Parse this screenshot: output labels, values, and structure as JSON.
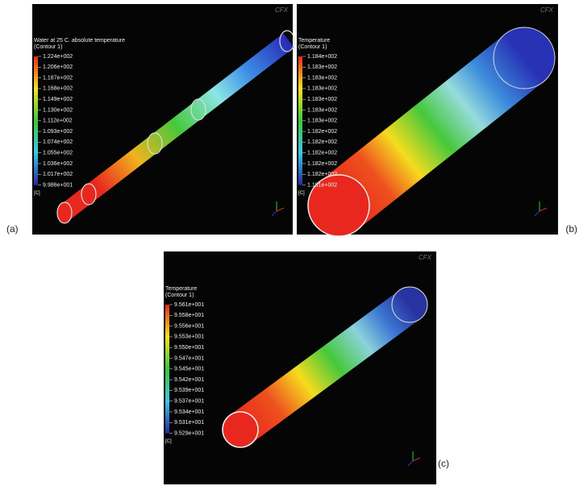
{
  "panels": [
    {
      "label": "(a)",
      "watermark": "CFX",
      "legend_title": [
        "Water at 25 C. absolute temperature",
        "(Contour 1)"
      ],
      "unit": "[C]",
      "ticks": [
        "1.224e+002",
        "1.206e+002",
        "1.187e+002",
        "1.168e+002",
        "1.149e+002",
        "1.130e+002",
        "1.112e+002",
        "1.093e+002",
        "1.074e+002",
        "1.055e+002",
        "1.036e+002",
        "1.017e+002",
        "9.986e+001"
      ]
    },
    {
      "label": "(b)",
      "watermark": "CFX",
      "legend_title": [
        "Temperature",
        "(Contour 1)"
      ],
      "unit": "[C]",
      "ticks": [
        "1.184e+002",
        "1.183e+002",
        "1.183e+002",
        "1.183e+002",
        "1.183e+002",
        "1.183e+002",
        "1.183e+002",
        "1.182e+002",
        "1.182e+002",
        "1.182e+002",
        "1.182e+002",
        "1.182e+002",
        "1.181e+002"
      ]
    },
    {
      "label": "(c)",
      "watermark": "CFX",
      "legend_title": [
        "Temperature",
        "(Contour 1)"
      ],
      "unit": "[C]",
      "ticks": [
        "9.561e+001",
        "9.558e+001",
        "9.556e+001",
        "9.553e+001",
        "9.550e+001",
        "9.547e+001",
        "9.545e+001",
        "9.542e+001",
        "9.539e+001",
        "9.537e+001",
        "9.534e+001",
        "9.531e+001",
        "9.529e+001"
      ]
    }
  ]
}
